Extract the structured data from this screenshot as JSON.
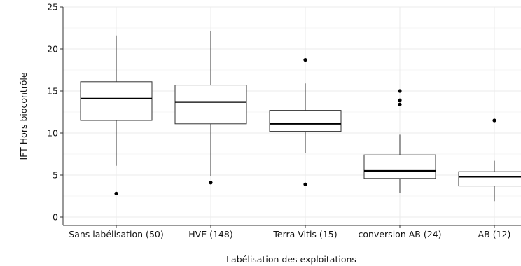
{
  "chart_data": {
    "type": "boxplot",
    "title": "",
    "xlabel": "Labélisation des exploitations",
    "ylabel": "IFT Hors biocontrôle",
    "ylim": [
      -1,
      25
    ],
    "yticks": [
      0,
      5,
      10,
      15,
      20,
      25
    ],
    "grid": true,
    "legend": "none",
    "categories": [
      "Sans labélisation (50)",
      "HVE (148)",
      "Terra Vitis (15)",
      "conversion AB (24)",
      "AB (12)"
    ],
    "boxes": [
      {
        "whisker_low": 6.1,
        "q1": 11.5,
        "median": 14.1,
        "q3": 16.1,
        "whisker_high": 21.6,
        "outliers": [
          2.8
        ]
      },
      {
        "whisker_low": 4.9,
        "q1": 11.1,
        "median": 13.7,
        "q3": 15.7,
        "whisker_high": 22.1,
        "outliers": [
          4.1
        ]
      },
      {
        "whisker_low": 7.6,
        "q1": 10.2,
        "median": 11.1,
        "q3": 12.7,
        "whisker_high": 15.9,
        "outliers": [
          3.9,
          18.7
        ]
      },
      {
        "whisker_low": 2.9,
        "q1": 4.6,
        "median": 5.5,
        "q3": 7.4,
        "whisker_high": 9.8,
        "outliers": [
          13.4,
          13.9,
          15.0
        ]
      },
      {
        "whisker_low": 1.9,
        "q1": 3.7,
        "median": 4.8,
        "q3": 5.4,
        "whisker_high": 6.7,
        "outliers": [
          11.5
        ]
      }
    ]
  },
  "colors": {
    "box_fill": "#ffffff",
    "box_stroke": "#333333",
    "grid": "#ebebeb",
    "axis": "#333333",
    "outlier": "#000000"
  }
}
